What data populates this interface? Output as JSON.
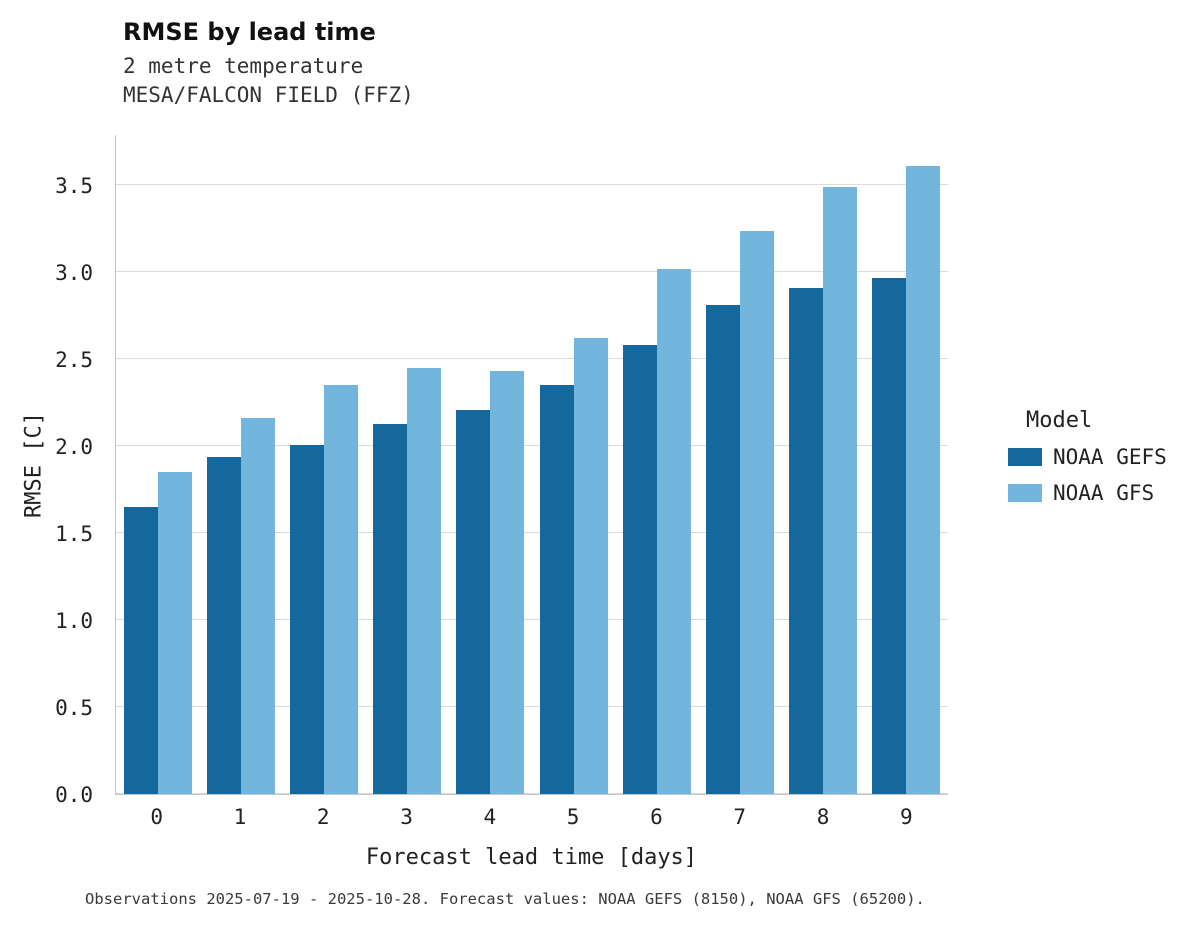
{
  "chart_data": {
    "type": "bar",
    "title": "RMSE by lead time",
    "subtitle_lines": [
      "2 metre temperature",
      "MESA/FALCON FIELD (FFZ)"
    ],
    "xlabel": "Forecast lead time [days]",
    "ylabel": "RMSE [C]",
    "categories": [
      "0",
      "1",
      "2",
      "3",
      "4",
      "5",
      "6",
      "7",
      "8",
      "9"
    ],
    "series": [
      {
        "name": "NOAA GEFS",
        "color": "#15689c",
        "values": [
          1.65,
          1.94,
          2.01,
          2.13,
          2.21,
          2.35,
          2.58,
          2.81,
          2.91,
          2.97
        ]
      },
      {
        "name": "NOAA GFS",
        "color": "#72b5dd",
        "values": [
          1.85,
          2.16,
          2.35,
          2.45,
          2.43,
          2.62,
          3.02,
          3.24,
          3.49,
          3.61
        ]
      }
    ],
    "yticks": [
      "0.0",
      "0.5",
      "1.0",
      "1.5",
      "2.0",
      "2.5",
      "3.0",
      "3.5"
    ],
    "ylim": [
      0,
      3.79
    ],
    "grid": "horizontal",
    "legend": {
      "title": "Model",
      "position": "right"
    },
    "caption": "Observations 2025-07-19 - 2025-10-28. Forecast values: NOAA GEFS (8150), NOAA GFS (65200)."
  }
}
